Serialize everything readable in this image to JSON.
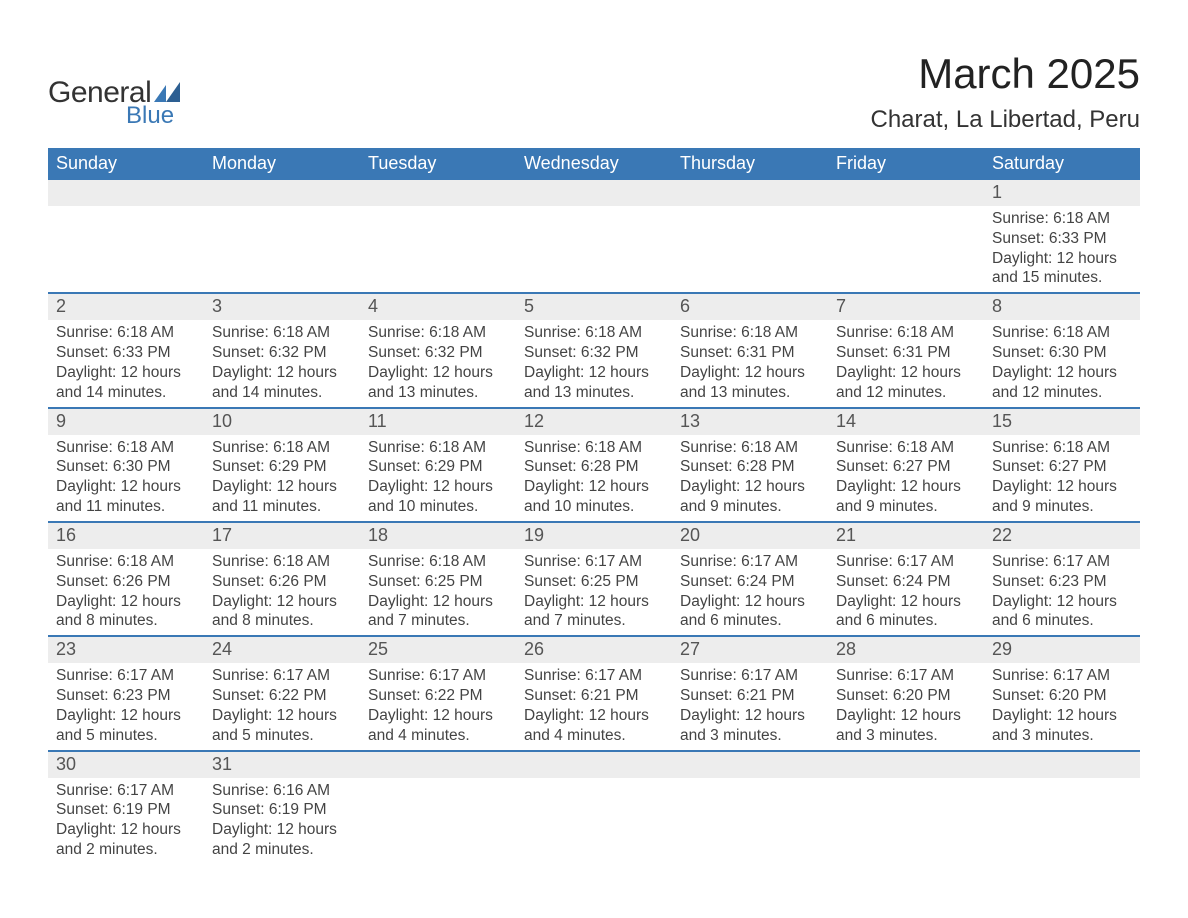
{
  "brand": {
    "word1": "General",
    "word2": "Blue",
    "logo_color": "#3a78b5",
    "text_color": "#333333"
  },
  "header": {
    "title": "March 2025",
    "location": "Charat, La Libertad, Peru",
    "title_fontsize": 42,
    "location_fontsize": 24
  },
  "colors": {
    "header_bg": "#3a78b5",
    "header_text": "#ffffff",
    "daynum_bg": "#ededed",
    "row_border": "#3a78b5",
    "body_text": "#444444",
    "background": "#ffffff"
  },
  "typography": {
    "base_font": "Arial",
    "dayheader_fontsize": 18,
    "daynum_fontsize": 18,
    "data_fontsize": 15.5
  },
  "calendar": {
    "type": "table",
    "day_headers": [
      "Sunday",
      "Monday",
      "Tuesday",
      "Wednesday",
      "Thursday",
      "Friday",
      "Saturday"
    ],
    "weeks": [
      [
        null,
        null,
        null,
        null,
        null,
        null,
        {
          "n": "1",
          "sunrise": "Sunrise: 6:18 AM",
          "sunset": "Sunset: 6:33 PM",
          "daylight": "Daylight: 12 hours and 15 minutes."
        }
      ],
      [
        {
          "n": "2",
          "sunrise": "Sunrise: 6:18 AM",
          "sunset": "Sunset: 6:33 PM",
          "daylight": "Daylight: 12 hours and 14 minutes."
        },
        {
          "n": "3",
          "sunrise": "Sunrise: 6:18 AM",
          "sunset": "Sunset: 6:32 PM",
          "daylight": "Daylight: 12 hours and 14 minutes."
        },
        {
          "n": "4",
          "sunrise": "Sunrise: 6:18 AM",
          "sunset": "Sunset: 6:32 PM",
          "daylight": "Daylight: 12 hours and 13 minutes."
        },
        {
          "n": "5",
          "sunrise": "Sunrise: 6:18 AM",
          "sunset": "Sunset: 6:32 PM",
          "daylight": "Daylight: 12 hours and 13 minutes."
        },
        {
          "n": "6",
          "sunrise": "Sunrise: 6:18 AM",
          "sunset": "Sunset: 6:31 PM",
          "daylight": "Daylight: 12 hours and 13 minutes."
        },
        {
          "n": "7",
          "sunrise": "Sunrise: 6:18 AM",
          "sunset": "Sunset: 6:31 PM",
          "daylight": "Daylight: 12 hours and 12 minutes."
        },
        {
          "n": "8",
          "sunrise": "Sunrise: 6:18 AM",
          "sunset": "Sunset: 6:30 PM",
          "daylight": "Daylight: 12 hours and 12 minutes."
        }
      ],
      [
        {
          "n": "9",
          "sunrise": "Sunrise: 6:18 AM",
          "sunset": "Sunset: 6:30 PM",
          "daylight": "Daylight: 12 hours and 11 minutes."
        },
        {
          "n": "10",
          "sunrise": "Sunrise: 6:18 AM",
          "sunset": "Sunset: 6:29 PM",
          "daylight": "Daylight: 12 hours and 11 minutes."
        },
        {
          "n": "11",
          "sunrise": "Sunrise: 6:18 AM",
          "sunset": "Sunset: 6:29 PM",
          "daylight": "Daylight: 12 hours and 10 minutes."
        },
        {
          "n": "12",
          "sunrise": "Sunrise: 6:18 AM",
          "sunset": "Sunset: 6:28 PM",
          "daylight": "Daylight: 12 hours and 10 minutes."
        },
        {
          "n": "13",
          "sunrise": "Sunrise: 6:18 AM",
          "sunset": "Sunset: 6:28 PM",
          "daylight": "Daylight: 12 hours and 9 minutes."
        },
        {
          "n": "14",
          "sunrise": "Sunrise: 6:18 AM",
          "sunset": "Sunset: 6:27 PM",
          "daylight": "Daylight: 12 hours and 9 minutes."
        },
        {
          "n": "15",
          "sunrise": "Sunrise: 6:18 AM",
          "sunset": "Sunset: 6:27 PM",
          "daylight": "Daylight: 12 hours and 9 minutes."
        }
      ],
      [
        {
          "n": "16",
          "sunrise": "Sunrise: 6:18 AM",
          "sunset": "Sunset: 6:26 PM",
          "daylight": "Daylight: 12 hours and 8 minutes."
        },
        {
          "n": "17",
          "sunrise": "Sunrise: 6:18 AM",
          "sunset": "Sunset: 6:26 PM",
          "daylight": "Daylight: 12 hours and 8 minutes."
        },
        {
          "n": "18",
          "sunrise": "Sunrise: 6:18 AM",
          "sunset": "Sunset: 6:25 PM",
          "daylight": "Daylight: 12 hours and 7 minutes."
        },
        {
          "n": "19",
          "sunrise": "Sunrise: 6:17 AM",
          "sunset": "Sunset: 6:25 PM",
          "daylight": "Daylight: 12 hours and 7 minutes."
        },
        {
          "n": "20",
          "sunrise": "Sunrise: 6:17 AM",
          "sunset": "Sunset: 6:24 PM",
          "daylight": "Daylight: 12 hours and 6 minutes."
        },
        {
          "n": "21",
          "sunrise": "Sunrise: 6:17 AM",
          "sunset": "Sunset: 6:24 PM",
          "daylight": "Daylight: 12 hours and 6 minutes."
        },
        {
          "n": "22",
          "sunrise": "Sunrise: 6:17 AM",
          "sunset": "Sunset: 6:23 PM",
          "daylight": "Daylight: 12 hours and 6 minutes."
        }
      ],
      [
        {
          "n": "23",
          "sunrise": "Sunrise: 6:17 AM",
          "sunset": "Sunset: 6:23 PM",
          "daylight": "Daylight: 12 hours and 5 minutes."
        },
        {
          "n": "24",
          "sunrise": "Sunrise: 6:17 AM",
          "sunset": "Sunset: 6:22 PM",
          "daylight": "Daylight: 12 hours and 5 minutes."
        },
        {
          "n": "25",
          "sunrise": "Sunrise: 6:17 AM",
          "sunset": "Sunset: 6:22 PM",
          "daylight": "Daylight: 12 hours and 4 minutes."
        },
        {
          "n": "26",
          "sunrise": "Sunrise: 6:17 AM",
          "sunset": "Sunset: 6:21 PM",
          "daylight": "Daylight: 12 hours and 4 minutes."
        },
        {
          "n": "27",
          "sunrise": "Sunrise: 6:17 AM",
          "sunset": "Sunset: 6:21 PM",
          "daylight": "Daylight: 12 hours and 3 minutes."
        },
        {
          "n": "28",
          "sunrise": "Sunrise: 6:17 AM",
          "sunset": "Sunset: 6:20 PM",
          "daylight": "Daylight: 12 hours and 3 minutes."
        },
        {
          "n": "29",
          "sunrise": "Sunrise: 6:17 AM",
          "sunset": "Sunset: 6:20 PM",
          "daylight": "Daylight: 12 hours and 3 minutes."
        }
      ],
      [
        {
          "n": "30",
          "sunrise": "Sunrise: 6:17 AM",
          "sunset": "Sunset: 6:19 PM",
          "daylight": "Daylight: 12 hours and 2 minutes."
        },
        {
          "n": "31",
          "sunrise": "Sunrise: 6:16 AM",
          "sunset": "Sunset: 6:19 PM",
          "daylight": "Daylight: 12 hours and 2 minutes."
        },
        null,
        null,
        null,
        null,
        null
      ]
    ]
  }
}
